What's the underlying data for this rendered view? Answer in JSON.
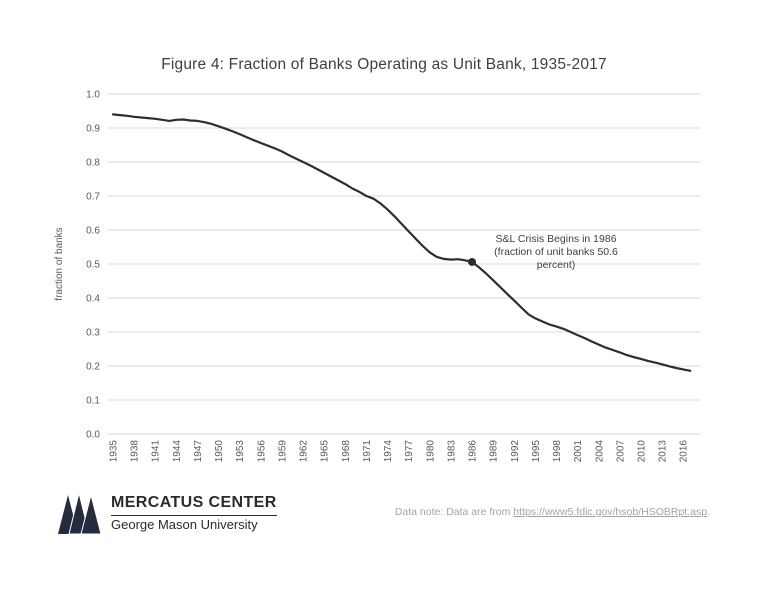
{
  "chart_data": {
    "type": "line",
    "title": "Figure 4: Fraction of Banks Operating as Unit Bank, 1935-2017",
    "xlabel": "",
    "ylabel": "fraction of banks",
    "ylim": [
      0.0,
      1.0
    ],
    "y_ticks": [
      0.0,
      0.1,
      0.2,
      0.3,
      0.4,
      0.5,
      0.6,
      0.7,
      0.8,
      0.9,
      1.0
    ],
    "x_ticks": [
      1935,
      1938,
      1941,
      1944,
      1947,
      1950,
      1953,
      1956,
      1959,
      1962,
      1965,
      1968,
      1971,
      1974,
      1977,
      1980,
      1983,
      1986,
      1989,
      1992,
      1995,
      1998,
      2001,
      2004,
      2007,
      2010,
      2013,
      2016
    ],
    "grid": "horizontal",
    "legend": "none",
    "line_color": "#2e2e2e",
    "grid_color": "#d9d9d9",
    "tick_color": "#595959",
    "x": [
      1935,
      1936,
      1937,
      1938,
      1939,
      1940,
      1941,
      1942,
      1943,
      1944,
      1945,
      1946,
      1947,
      1948,
      1949,
      1950,
      1951,
      1952,
      1953,
      1954,
      1955,
      1956,
      1957,
      1958,
      1959,
      1960,
      1961,
      1962,
      1963,
      1964,
      1965,
      1966,
      1967,
      1968,
      1969,
      1970,
      1971,
      1972,
      1973,
      1974,
      1975,
      1976,
      1977,
      1978,
      1979,
      1980,
      1981,
      1982,
      1983,
      1984,
      1985,
      1986,
      1987,
      1988,
      1989,
      1990,
      1991,
      1992,
      1993,
      1994,
      1995,
      1996,
      1997,
      1998,
      1999,
      2000,
      2001,
      2002,
      2003,
      2004,
      2005,
      2006,
      2007,
      2008,
      2009,
      2010,
      2011,
      2012,
      2013,
      2014,
      2015,
      2016,
      2017
    ],
    "values": [
      0.94,
      0.938,
      0.936,
      0.933,
      0.931,
      0.929,
      0.927,
      0.924,
      0.921,
      0.924,
      0.925,
      0.922,
      0.921,
      0.917,
      0.912,
      0.905,
      0.898,
      0.89,
      0.882,
      0.873,
      0.864,
      0.856,
      0.848,
      0.84,
      0.831,
      0.82,
      0.81,
      0.8,
      0.79,
      0.779,
      0.768,
      0.757,
      0.746,
      0.735,
      0.722,
      0.712,
      0.7,
      0.692,
      0.678,
      0.66,
      0.64,
      0.618,
      0.596,
      0.574,
      0.553,
      0.534,
      0.521,
      0.515,
      0.513,
      0.514,
      0.511,
      0.506,
      0.49,
      0.472,
      0.452,
      0.432,
      0.412,
      0.392,
      0.372,
      0.352,
      0.34,
      0.331,
      0.322,
      0.316,
      0.309,
      0.3,
      0.291,
      0.282,
      0.272,
      0.263,
      0.254,
      0.247,
      0.24,
      0.232,
      0.226,
      0.221,
      0.215,
      0.21,
      0.205,
      0.199,
      0.194,
      0.19,
      0.186
    ],
    "annotation": {
      "x": 1986,
      "y": 0.506,
      "lines": [
        "S&L Crisis Begins in 1986",
        "(fraction of unit banks 50.6",
        "percent)"
      ]
    }
  },
  "footer": {
    "logo_line1": "MERCATUS CENTER",
    "logo_line2": "George Mason University",
    "data_note_prefix": "Data note: Data are from ",
    "data_note_link": "https://www5.fdic.gov/hsob/HSOBRpt.asp",
    "data_note_suffix": "."
  }
}
